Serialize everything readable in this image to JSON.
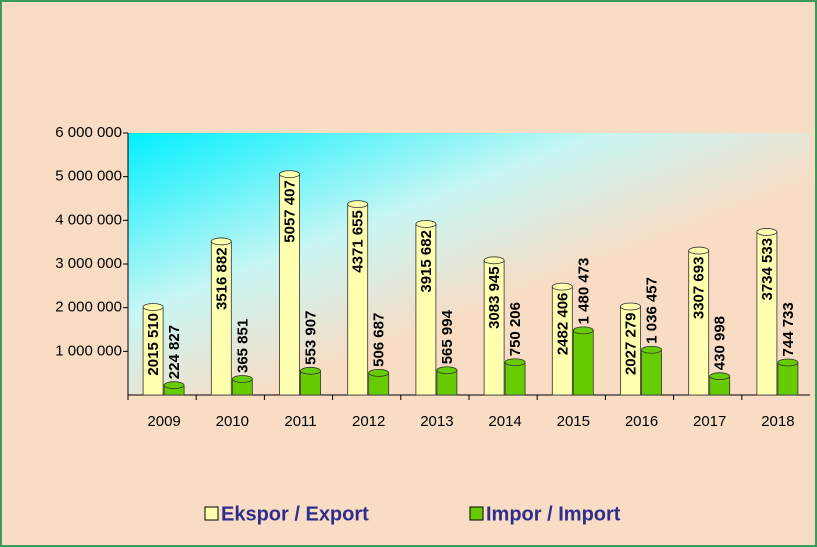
{
  "chart_data": {
    "type": "bar",
    "categories": [
      "2009",
      "2010",
      "2011",
      "2012",
      "2013",
      "2014",
      "2015",
      "2016",
      "2017",
      "2018"
    ],
    "series": [
      {
        "name": "Ekspor / Export",
        "color": "#ffffb0",
        "values": [
          2015510,
          3516882,
          5057407,
          4371655,
          3915682,
          3083945,
          2482406,
          2027279,
          3307693,
          3734533
        ],
        "value_labels": [
          "2015 510",
          "3516 882",
          "5057 407",
          "4371 655",
          "3915 682",
          "3083 945",
          "2482 406",
          "2027 279",
          "3307 693",
          "3734 533"
        ]
      },
      {
        "name": "Impor / Import",
        "color": "#66cc00",
        "values": [
          224827,
          365851,
          553907,
          506687,
          565994,
          750206,
          1480473,
          1036457,
          430998,
          744733
        ],
        "value_labels": [
          "224 827",
          "365 851",
          "553 907",
          "506 687",
          "565 994",
          "750 206",
          "1 480 473",
          "1 036 457",
          "430 998",
          "744 733"
        ]
      }
    ],
    "ylim": [
      0,
      6000000
    ],
    "yticks": [
      {
        "value": 1000000,
        "label": "1 000 000"
      },
      {
        "value": 2000000,
        "label": "2 000 000"
      },
      {
        "value": 3000000,
        "label": "3 000 000"
      },
      {
        "value": 4000000,
        "label": "4 000 000"
      },
      {
        "value": 5000000,
        "label": "5 000 000"
      },
      {
        "value": 6000000,
        "label": "6 000 000"
      }
    ],
    "legend": "bottom"
  }
}
